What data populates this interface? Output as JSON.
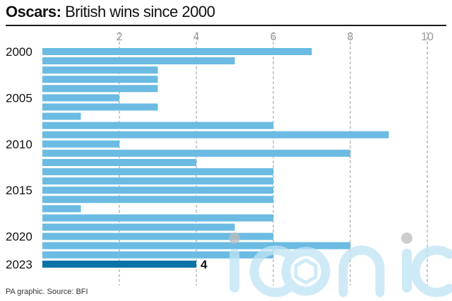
{
  "header": {
    "title_bold": "Oscars:",
    "title_rest": " British wins since 2000"
  },
  "source": "PA graphic. Source: BFI",
  "watermark": {
    "text": "iconic"
  },
  "colors": {
    "bar": "#6BBBE3",
    "highlight_bar": "#0B72A8",
    "gridline": "#999999",
    "tick_text": "#999999",
    "text": "#111111",
    "watermark": "#BFE3F5"
  },
  "chart_data": {
    "type": "bar",
    "orientation": "horizontal",
    "title": "Oscars: British wins since 2000",
    "categories": [
      "2000",
      "2001",
      "2002",
      "2003",
      "2004",
      "2005",
      "2006",
      "2007",
      "2008",
      "2009",
      "2010",
      "2011",
      "2012",
      "2013",
      "2014",
      "2015",
      "2016",
      "2017",
      "2018",
      "2019",
      "2020",
      "2021",
      "2022",
      "2023"
    ],
    "category_labels": [
      "2000",
      "",
      "",
      "",
      "",
      "2005",
      "",
      "",
      "",
      "",
      "2010",
      "",
      "",
      "",
      "",
      "2015",
      "",
      "",
      "",
      "",
      "2020",
      "",
      "",
      "2023"
    ],
    "values": [
      7,
      5,
      3,
      3,
      3,
      2,
      3,
      1,
      6,
      9,
      2,
      8,
      4,
      6,
      6,
      6,
      6,
      1,
      6,
      5,
      6,
      8,
      6,
      4
    ],
    "highlight": {
      "category": "2023",
      "label": "4"
    },
    "xticks": [
      2,
      4,
      6,
      8,
      10
    ],
    "xlim": [
      0,
      10.5
    ],
    "grid": "vertical-dashed",
    "xlabel": "",
    "ylabel": ""
  }
}
